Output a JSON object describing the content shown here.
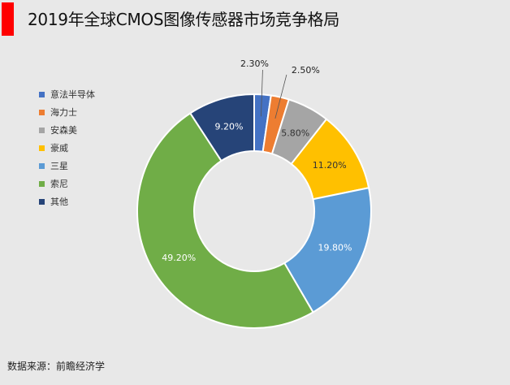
{
  "header": {
    "title": "2019年全球CMOS图像传感器市场竞争格局"
  },
  "footer": {
    "source": "数据来源：前瞻经济学"
  },
  "colors": {
    "accent": "#ff0000",
    "background": "#e8e8e8"
  },
  "chart_data": {
    "type": "pie",
    "donut": true,
    "legend_position": "left",
    "categories": [
      "意法半导体",
      "海力士",
      "安森美",
      "豪威",
      "三星",
      "索尼",
      "其他"
    ],
    "values": [
      2.3,
      2.5,
      5.8,
      11.2,
      19.8,
      49.2,
      9.2
    ],
    "labels": [
      "2.30%",
      "2.50%",
      "5.80%",
      "11.20%",
      "19.80%",
      "49.20%",
      "9.20%"
    ],
    "colors": [
      "#4472c4",
      "#ed7d31",
      "#a5a5a5",
      "#ffc000",
      "#5b9bd5",
      "#70ad47",
      "#264478"
    ]
  }
}
